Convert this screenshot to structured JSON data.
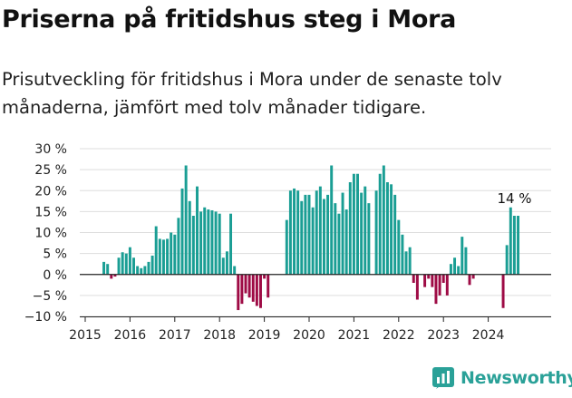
{
  "title": "Priserna på fritidshus steg i Mora",
  "subtitle": "Prisutveckling för fritidshus i Mora under de senaste tolv månaderna, jämfört med tolv månader tidigare.",
  "brand": {
    "name": "Newsworthy"
  },
  "colors": {
    "positive": "#1a9e94",
    "negative": "#9e0b45",
    "axis": "#222222",
    "grid": "#dddddd"
  },
  "chart_data": {
    "type": "bar",
    "x_start": "2015-06",
    "xlabel": "",
    "ylabel": "",
    "ylim": [
      -10,
      30
    ],
    "yticks": [
      -10,
      -5,
      0,
      5,
      10,
      15,
      20,
      25,
      30
    ],
    "ytick_labels": [
      "−10 %",
      "−5 %",
      "0 %",
      "5 %",
      "10 %",
      "15 %",
      "20 %",
      "25 %",
      "30 %"
    ],
    "xticks": [
      "2015",
      "2016",
      "2017",
      "2018",
      "2019",
      "2020",
      "2021",
      "2022",
      "2023",
      "2024"
    ],
    "grid": true,
    "values": [
      3,
      2.5,
      -1,
      -0.5,
      4,
      5.3,
      5,
      6.5,
      4,
      2,
      1.5,
      2,
      3,
      4.5,
      11.5,
      8.5,
      8.3,
      8.5,
      10,
      9.5,
      13.5,
      20.5,
      26,
      17.5,
      14,
      21,
      15,
      16,
      15.5,
      15.3,
      15,
      14.5,
      4,
      5.5,
      14.5,
      2,
      -8.5,
      -7,
      -4.5,
      -5.5,
      -6.5,
      -7.5,
      -8,
      -1,
      -5.5,
      null,
      null,
      null,
      null,
      13,
      20,
      20.5,
      20,
      17.5,
      19,
      19,
      16,
      20,
      21,
      18,
      19,
      26,
      17,
      14.5,
      19.5,
      15.5,
      22,
      24,
      24,
      19.5,
      21,
      17,
      null,
      20,
      24,
      26,
      22,
      21.5,
      19,
      13,
      9.5,
      5.5,
      6.5,
      -2,
      -6,
      null,
      -3,
      -1,
      -3,
      -7,
      -5,
      -2,
      -5,
      2.5,
      4,
      2,
      9,
      6.5,
      -2.5,
      -1,
      null,
      null,
      null,
      null,
      null,
      null,
      null,
      -8,
      7,
      16,
      14,
      14
    ],
    "annotations": [
      {
        "label": "14 %"
      }
    ]
  }
}
